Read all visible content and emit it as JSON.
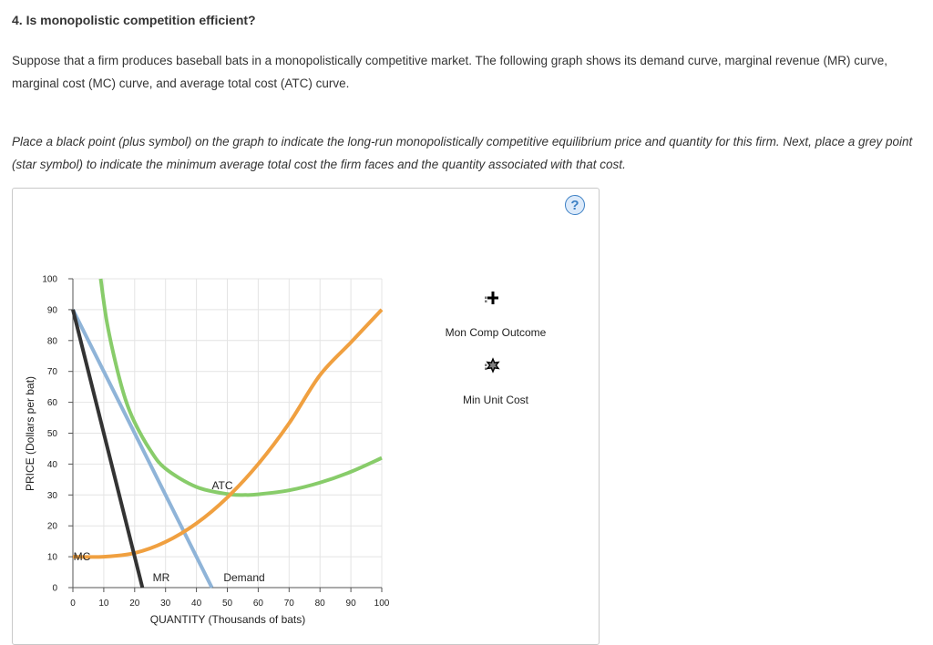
{
  "question": {
    "title": "4. Is monopolistic competition efficient?",
    "para1": "Suppose that a firm produces baseball bats in a monopolistically competitive market. The following graph shows its demand curve, marginal revenue (MR) curve, marginal cost (MC) curve, and average total cost (ATC) curve.",
    "para2": "Place a black point (plus symbol) on the graph to indicate the long-run monopolistically competitive equilibrium price and quantity for this firm. Next, place a grey point (star symbol) to indicate the minimum average total cost the firm faces and the quantity associated with that cost."
  },
  "help_icon": {
    "symbol": "?",
    "icon": "question-circle-icon",
    "color": "#3b7fc4"
  },
  "legend": [
    {
      "label": "Mon Comp Outcome",
      "icon": "plus-marker-icon",
      "color": "#000000"
    },
    {
      "label": "Min Unit Cost",
      "icon": "star-marker-icon",
      "color": "#808080"
    }
  ],
  "chart_data": {
    "type": "line",
    "xlabel": "QUANTITY (Thousands of bats)",
    "ylabel": "PRICE (Dollars per bat)",
    "xlim": [
      0,
      100
    ],
    "ylim": [
      0,
      100
    ],
    "xticks": [
      "0",
      "10",
      "20",
      "30",
      "40",
      "50",
      "60",
      "70",
      "80",
      "90",
      "100"
    ],
    "yticks": [
      "0",
      "10",
      "20",
      "30",
      "40",
      "50",
      "60",
      "70",
      "80",
      "90",
      "100"
    ],
    "grid": true,
    "series": [
      {
        "name": "MC",
        "color": "#f0a040",
        "x": [
          0,
          10,
          20,
          30,
          40,
          50,
          60,
          70,
          80,
          90,
          100
        ],
        "y": [
          10,
          10,
          11.2,
          14.8,
          20.8,
          29.2,
          40,
          53.2,
          68.8,
          79.4,
          90
        ]
      },
      {
        "name": "ATC",
        "color": "#88cc6a",
        "x": [
          9,
          11,
          14,
          17,
          20,
          25,
          30,
          40,
          50,
          56,
          60,
          70,
          80,
          90,
          100
        ],
        "y": [
          100,
          86,
          72,
          61,
          53.5,
          44.6,
          38.5,
          32.6,
          30.3,
          30,
          30.2,
          31.5,
          34,
          37.5,
          42
        ]
      },
      {
        "name": "Demand",
        "color": "#8fb4d8",
        "x": [
          0,
          45
        ],
        "y": [
          90,
          0
        ]
      },
      {
        "name": "MR",
        "color": "#333333",
        "x": [
          0,
          22.5
        ],
        "y": [
          90,
          0
        ]
      }
    ]
  }
}
